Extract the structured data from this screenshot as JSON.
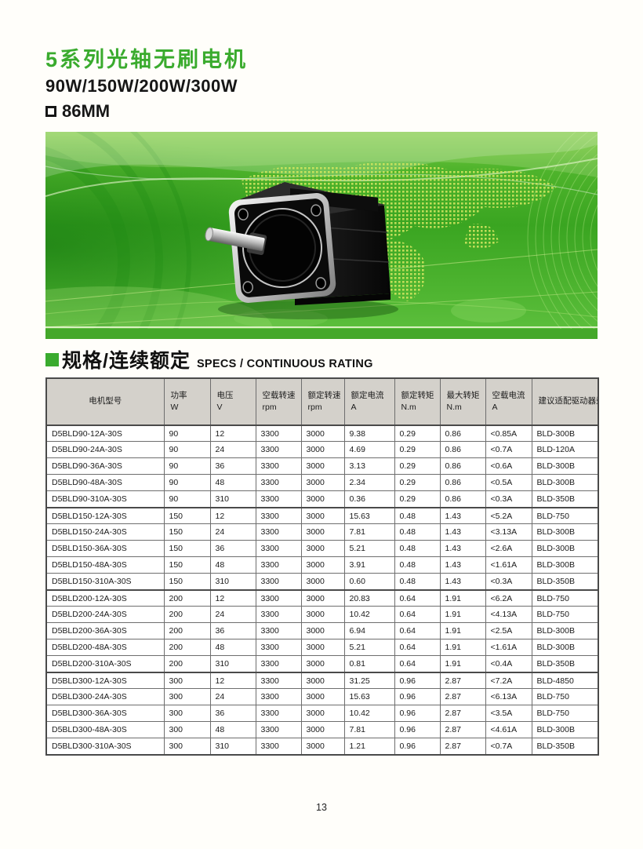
{
  "page": {
    "title_cn": "5系列光轴无刷电机",
    "subtitle": "90W/150W/200W/300W",
    "frame_size": "86MM",
    "page_number": "13"
  },
  "section": {
    "title_cn": "规格/连续额定",
    "title_en": "SPECS / CONTINUOUS RATING"
  },
  "banner": {
    "description": "green world-map banner with black 86mm brushless motor photo"
  },
  "colors": {
    "accent_green": "#3aab2e",
    "banner_green": "#45b02a",
    "banner_dot_yellow": "#cfe45f",
    "header_bg": "#d4d1cb",
    "border_dark": "#4a4a4a",
    "text": "#1a1a1a"
  },
  "table": {
    "headers": [
      {
        "label": "电机型号",
        "unit": ""
      },
      {
        "label": "功率",
        "unit": "W"
      },
      {
        "label": "电压",
        "unit": "V"
      },
      {
        "label": "空载转速",
        "unit": "rpm"
      },
      {
        "label": "额定转速",
        "unit": "rpm"
      },
      {
        "label": "额定电流",
        "unit": "A"
      },
      {
        "label": "额定转矩",
        "unit": "N.m"
      },
      {
        "label": "最大转矩",
        "unit": "N.m"
      },
      {
        "label": "空载电流",
        "unit": "A"
      },
      {
        "label": "建议适配驱动器型号",
        "unit": ""
      }
    ],
    "rows": [
      [
        "D5BLD90-12A-30S",
        "90",
        "12",
        "3300",
        "3000",
        "9.38",
        "0.29",
        "0.86",
        "<0.85A",
        "BLD-300B"
      ],
      [
        "D5BLD90-24A-30S",
        "90",
        "24",
        "3300",
        "3000",
        "4.69",
        "0.29",
        "0.86",
        "<0.7A",
        "BLD-120A"
      ],
      [
        "D5BLD90-36A-30S",
        "90",
        "36",
        "3300",
        "3000",
        "3.13",
        "0.29",
        "0.86",
        "<0.6A",
        "BLD-300B"
      ],
      [
        "D5BLD90-48A-30S",
        "90",
        "48",
        "3300",
        "3000",
        "2.34",
        "0.29",
        "0.86",
        "<0.5A",
        "BLD-300B"
      ],
      [
        "D5BLD90-310A-30S",
        "90",
        "310",
        "3300",
        "3000",
        "0.36",
        "0.29",
        "0.86",
        "<0.3A",
        "BLD-350B"
      ],
      [
        "D5BLD150-12A-30S",
        "150",
        "12",
        "3300",
        "3000",
        "15.63",
        "0.48",
        "1.43",
        "<5.2A",
        "BLD-750"
      ],
      [
        "D5BLD150-24A-30S",
        "150",
        "24",
        "3300",
        "3000",
        "7.81",
        "0.48",
        "1.43",
        "<3.13A",
        "BLD-300B"
      ],
      [
        "D5BLD150-36A-30S",
        "150",
        "36",
        "3300",
        "3000",
        "5.21",
        "0.48",
        "1.43",
        "<2.6A",
        "BLD-300B"
      ],
      [
        "D5BLD150-48A-30S",
        "150",
        "48",
        "3300",
        "3000",
        "3.91",
        "0.48",
        "1.43",
        "<1.61A",
        "BLD-300B"
      ],
      [
        "D5BLD150-310A-30S",
        "150",
        "310",
        "3300",
        "3000",
        "0.60",
        "0.48",
        "1.43",
        "<0.3A",
        "BLD-350B"
      ],
      [
        "D5BLD200-12A-30S",
        "200",
        "12",
        "3300",
        "3000",
        "20.83",
        "0.64",
        "1.91",
        "<6.2A",
        "BLD-750"
      ],
      [
        "D5BLD200-24A-30S",
        "200",
        "24",
        "3300",
        "3000",
        "10.42",
        "0.64",
        "1.91",
        "<4.13A",
        "BLD-750"
      ],
      [
        "D5BLD200-36A-30S",
        "200",
        "36",
        "3300",
        "3000",
        "6.94",
        "0.64",
        "1.91",
        "<2.5A",
        "BLD-300B"
      ],
      [
        "D5BLD200-48A-30S",
        "200",
        "48",
        "3300",
        "3000",
        "5.21",
        "0.64",
        "1.91",
        "<1.61A",
        "BLD-300B"
      ],
      [
        "D5BLD200-310A-30S",
        "200",
        "310",
        "3300",
        "3000",
        "0.81",
        "0.64",
        "1.91",
        "<0.4A",
        "BLD-350B"
      ],
      [
        "D5BLD300-12A-30S",
        "300",
        "12",
        "3300",
        "3000",
        "31.25",
        "0.96",
        "2.87",
        "<7.2A",
        "BLD-4850"
      ],
      [
        "D5BLD300-24A-30S",
        "300",
        "24",
        "3300",
        "3000",
        "15.63",
        "0.96",
        "2.87",
        "<6.13A",
        "BLD-750"
      ],
      [
        "D5BLD300-36A-30S",
        "300",
        "36",
        "3300",
        "3000",
        "10.42",
        "0.96",
        "2.87",
        "<3.5A",
        "BLD-750"
      ],
      [
        "D5BLD300-48A-30S",
        "300",
        "48",
        "3300",
        "3000",
        "7.81",
        "0.96",
        "2.87",
        "<4.61A",
        "BLD-300B"
      ],
      [
        "D5BLD300-310A-30S",
        "300",
        "310",
        "3300",
        "3000",
        "1.21",
        "0.96",
        "2.87",
        "<0.7A",
        "BLD-350B"
      ]
    ]
  }
}
